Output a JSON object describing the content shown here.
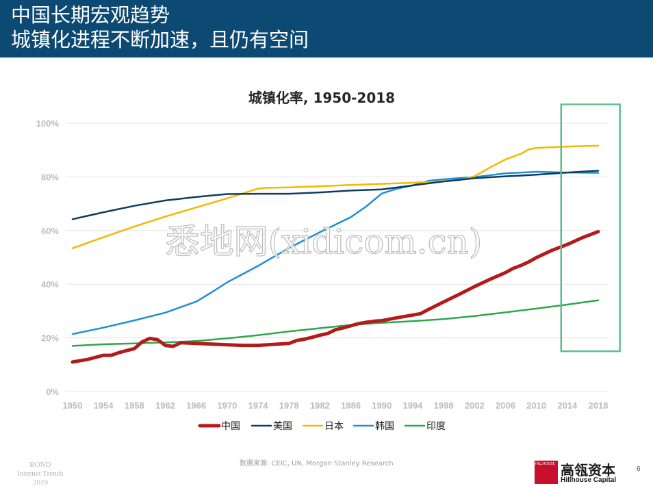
{
  "header": {
    "line1": "中国长期宏观趋势",
    "line2": "城镇化进程不断加速，且仍有空间"
  },
  "watermark": "悉地网(xidicom.cn)",
  "footer": {
    "bond_line1": "BOND",
    "bond_line2": "Internet Trends",
    "bond_line3": "2019",
    "source": "数据来源: CEIC, UN, Morgan Stanley Research",
    "logo_cn": "高瓴资本",
    "logo_en": "Hillhouse Capital",
    "logo_mark": "HILLHOUSE",
    "page_number": "6"
  },
  "chart_data": {
    "type": "line",
    "title": "城镇化率, 1950-2018",
    "xlabel": "",
    "ylabel": "",
    "x_ticks": [
      1950,
      1954,
      1958,
      1962,
      1966,
      1970,
      1974,
      1978,
      1982,
      1986,
      1990,
      1994,
      1998,
      2002,
      2006,
      2010,
      2014,
      2018
    ],
    "y_ticks": [
      0,
      20,
      40,
      60,
      80,
      100
    ],
    "y_tick_labels": [
      "0%",
      "20%",
      "40%",
      "60%",
      "80%",
      "100%"
    ],
    "xlim": [
      1950,
      2018
    ],
    "ylim": [
      0,
      100
    ],
    "grid": "horizontal",
    "legend_position": "bottom",
    "highlight_box": {
      "x_range": [
        2013.2,
        2020.8
      ],
      "y_range": [
        15,
        107
      ],
      "color": "#5cbf8a"
    },
    "series": [
      {
        "name": "中国",
        "color": "#b31b1b",
        "width": 5,
        "points": [
          [
            1950,
            11
          ],
          [
            1952,
            12
          ],
          [
            1954,
            13.5
          ],
          [
            1955,
            13.5
          ],
          [
            1956,
            14.5
          ],
          [
            1958,
            16
          ],
          [
            1959,
            18.5
          ],
          [
            1960,
            19.8
          ],
          [
            1961,
            19.3
          ],
          [
            1962,
            17.2
          ],
          [
            1963,
            16.8
          ],
          [
            1964,
            18.2
          ],
          [
            1966,
            17.9
          ],
          [
            1970,
            17.4
          ],
          [
            1972,
            17.2
          ],
          [
            1974,
            17.2
          ],
          [
            1978,
            17.9
          ],
          [
            1979,
            19
          ],
          [
            1980,
            19.5
          ],
          [
            1981,
            20.2
          ],
          [
            1982,
            21
          ],
          [
            1983,
            21.6
          ],
          [
            1984,
            23
          ],
          [
            1985,
            23.7
          ],
          [
            1986,
            24.5
          ],
          [
            1987,
            25.3
          ],
          [
            1988,
            25.8
          ],
          [
            1989,
            26.2
          ],
          [
            1990,
            26.4
          ],
          [
            1992,
            27.5
          ],
          [
            1994,
            28.5
          ],
          [
            1995,
            29
          ],
          [
            1996,
            30.5
          ],
          [
            1998,
            33.4
          ],
          [
            2000,
            36.2
          ],
          [
            2002,
            39.1
          ],
          [
            2004,
            41.8
          ],
          [
            2006,
            44.3
          ],
          [
            2007,
            45.9
          ],
          [
            2008,
            47
          ],
          [
            2009,
            48.3
          ],
          [
            2010,
            49.9
          ],
          [
            2012,
            52.6
          ],
          [
            2014,
            54.8
          ],
          [
            2016,
            57.4
          ],
          [
            2018,
            59.6
          ]
        ]
      },
      {
        "name": "美国",
        "color": "#0d3c61",
        "width": 2.5,
        "points": [
          [
            1950,
            64.2
          ],
          [
            1954,
            66.8
          ],
          [
            1958,
            69.2
          ],
          [
            1962,
            71.2
          ],
          [
            1966,
            72.5
          ],
          [
            1970,
            73.6
          ],
          [
            1974,
            73.7
          ],
          [
            1978,
            73.7
          ],
          [
            1982,
            74.2
          ],
          [
            1986,
            74.9
          ],
          [
            1990,
            75.3
          ],
          [
            1994,
            76.8
          ],
          [
            1998,
            78.3
          ],
          [
            2002,
            79.5
          ],
          [
            2006,
            80.2
          ],
          [
            2010,
            80.8
          ],
          [
            2014,
            81.6
          ],
          [
            2018,
            82.3
          ]
        ]
      },
      {
        "name": "日本",
        "color": "#f5b700",
        "width": 2.5,
        "points": [
          [
            1950,
            53.4
          ],
          [
            1954,
            57.5
          ],
          [
            1958,
            61.5
          ],
          [
            1962,
            65.2
          ],
          [
            1966,
            68.6
          ],
          [
            1970,
            72
          ],
          [
            1974,
            75.6
          ],
          [
            1975,
            75.9
          ],
          [
            1978,
            76.1
          ],
          [
            1982,
            76.5
          ],
          [
            1986,
            77
          ],
          [
            1990,
            77.4
          ],
          [
            1994,
            77.8
          ],
          [
            1998,
            78.4
          ],
          [
            2000,
            78.7
          ],
          [
            2002,
            80.2
          ],
          [
            2004,
            83.5
          ],
          [
            2006,
            86.5
          ],
          [
            2008,
            88.6
          ],
          [
            2009,
            90.2
          ],
          [
            2010,
            90.8
          ],
          [
            2014,
            91.3
          ],
          [
            2018,
            91.6
          ]
        ]
      },
      {
        "name": "韩国",
        "color": "#1e8fd5",
        "width": 2.5,
        "points": [
          [
            1950,
            21.4
          ],
          [
            1954,
            23.8
          ],
          [
            1958,
            26.5
          ],
          [
            1962,
            29.4
          ],
          [
            1966,
            33.5
          ],
          [
            1968,
            37
          ],
          [
            1970,
            40.7
          ],
          [
            1974,
            46.8
          ],
          [
            1978,
            53.5
          ],
          [
            1982,
            59.4
          ],
          [
            1986,
            65
          ],
          [
            1988,
            69
          ],
          [
            1990,
            73.8
          ],
          [
            1992,
            75.6
          ],
          [
            1994,
            76.8
          ],
          [
            1996,
            78.5
          ],
          [
            1998,
            79.1
          ],
          [
            2002,
            79.9
          ],
          [
            2006,
            81.3
          ],
          [
            2010,
            81.9
          ],
          [
            2014,
            81.6
          ],
          [
            2018,
            81.5
          ]
        ]
      },
      {
        "name": "印度",
        "color": "#2aa84a",
        "width": 2.5,
        "points": [
          [
            1950,
            17
          ],
          [
            1954,
            17.6
          ],
          [
            1958,
            17.9
          ],
          [
            1962,
            18.3
          ],
          [
            1966,
            18.8
          ],
          [
            1970,
            19.8
          ],
          [
            1974,
            21
          ],
          [
            1978,
            22.4
          ],
          [
            1982,
            23.6
          ],
          [
            1986,
            24.8
          ],
          [
            1990,
            25.6
          ],
          [
            1994,
            26.2
          ],
          [
            1998,
            27
          ],
          [
            2002,
            28.1
          ],
          [
            2006,
            29.5
          ],
          [
            2010,
            30.9
          ],
          [
            2014,
            32.4
          ],
          [
            2018,
            34
          ]
        ]
      }
    ]
  }
}
